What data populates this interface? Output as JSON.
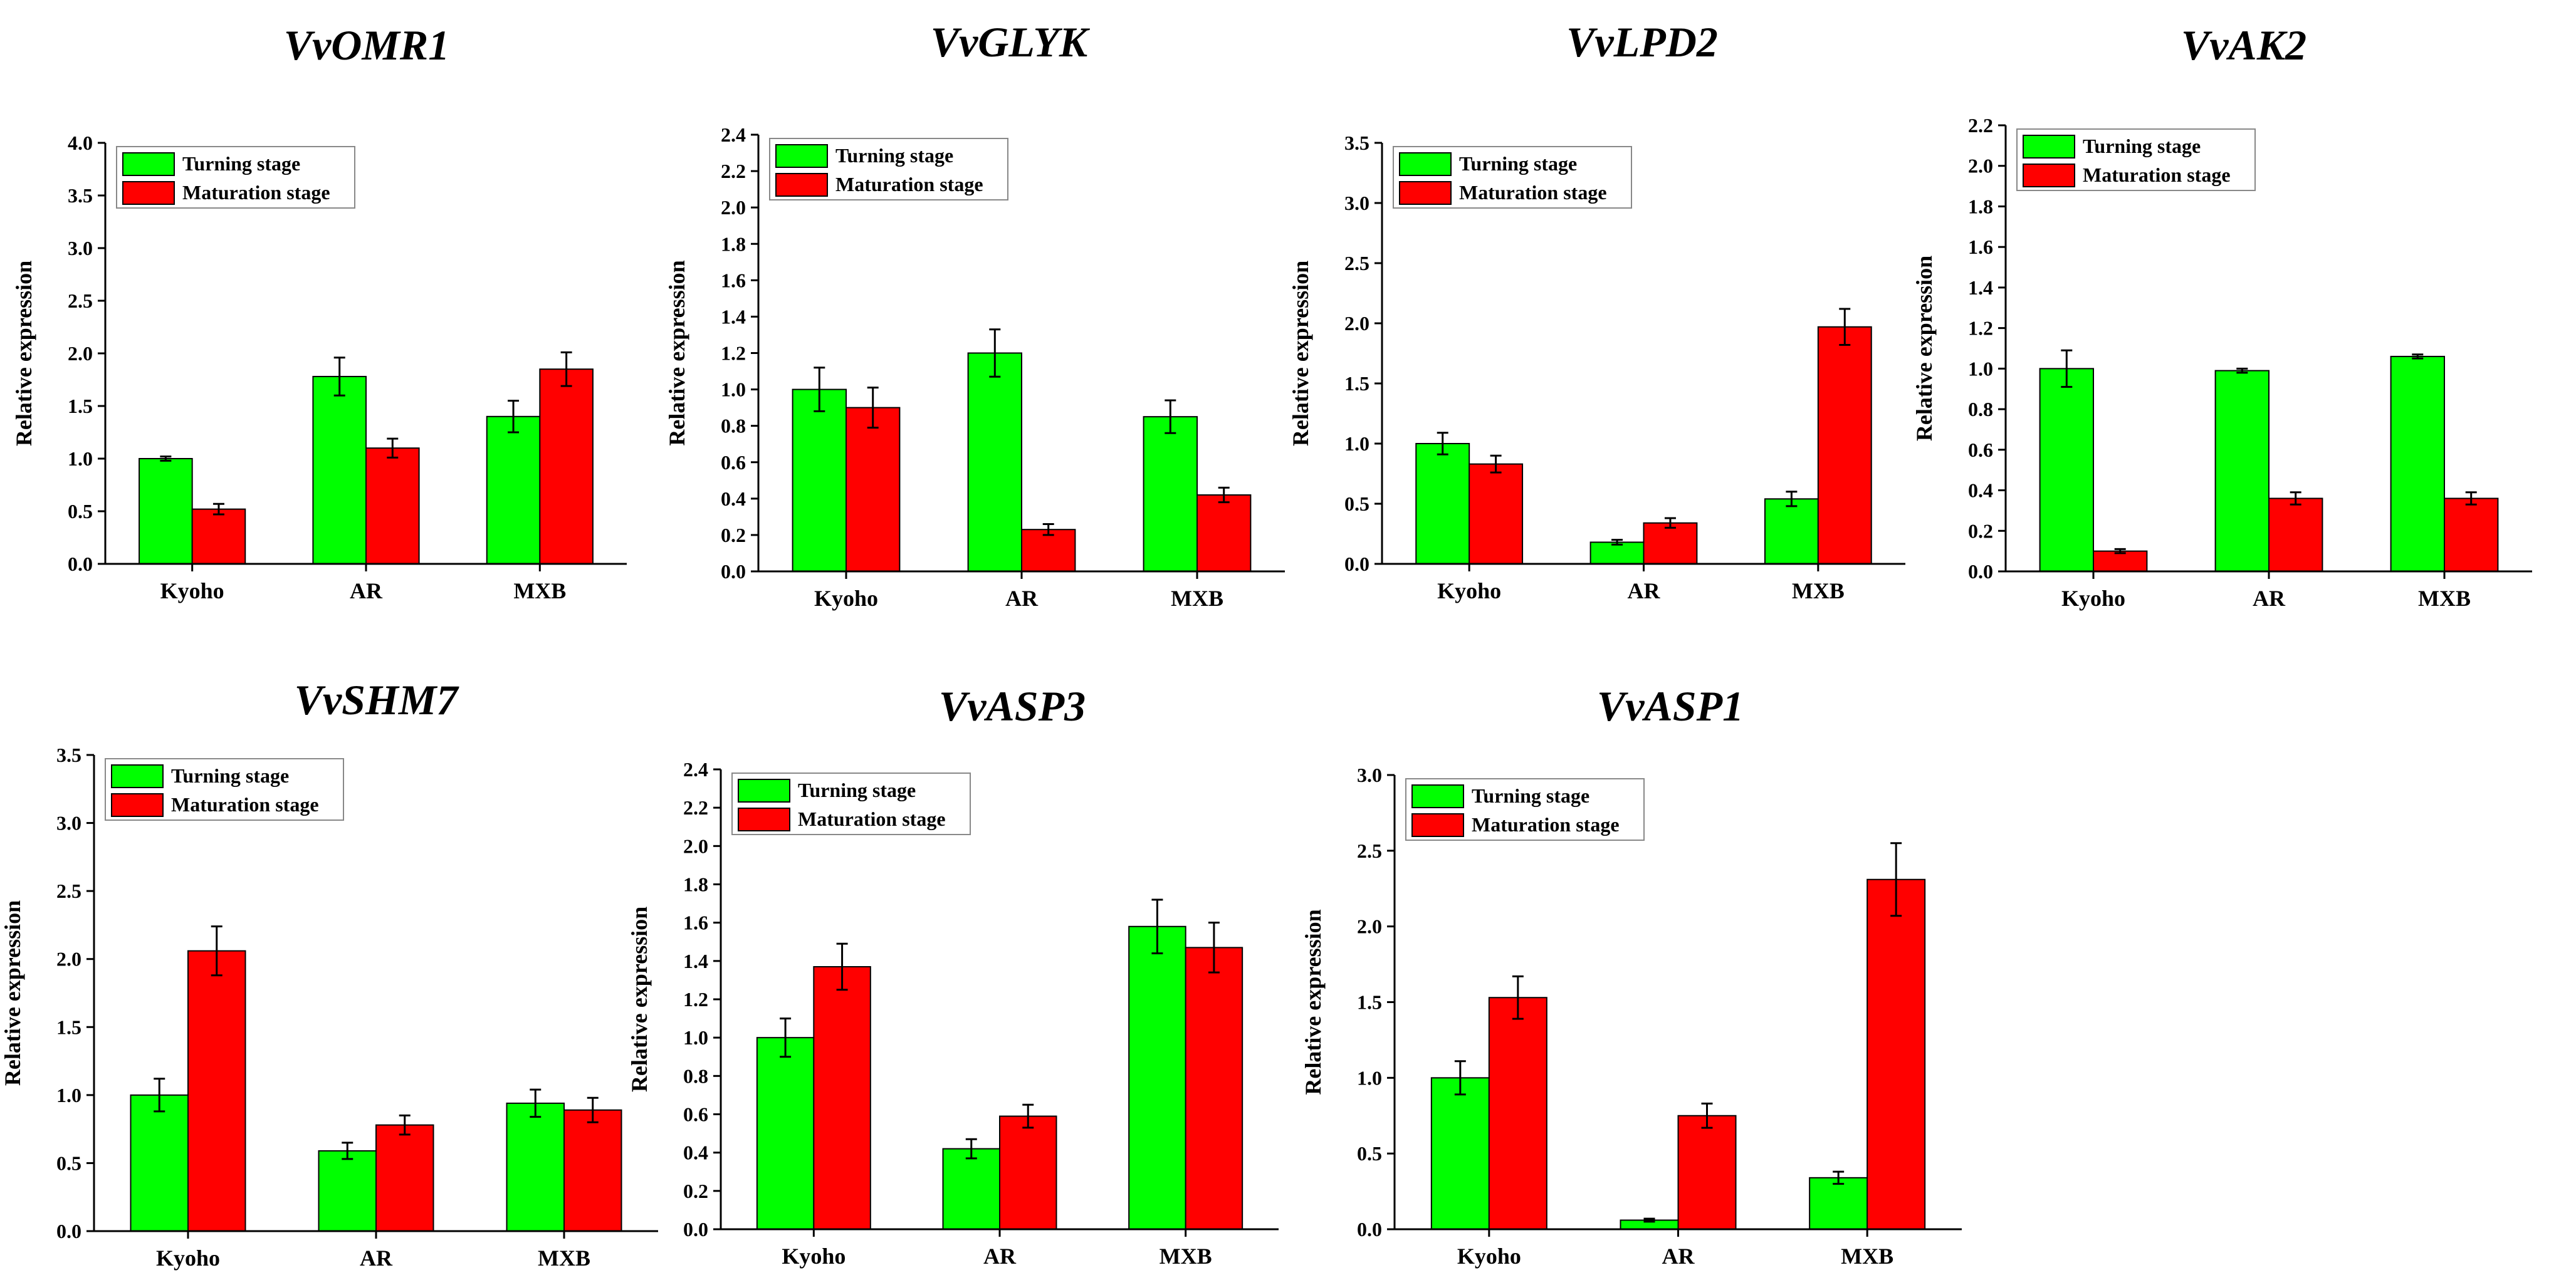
{
  "colors": {
    "turning": "#00ff00",
    "maturation": "#ff0000",
    "axis": "#000000"
  },
  "chart_data": [
    {
      "type": "bar",
      "title": "VvOMR1",
      "xlabel": "",
      "ylabel": "Relative expression",
      "categories": [
        "Kyoho",
        "AR",
        "MXB"
      ],
      "ylim": [
        0,
        4.0
      ],
      "yticks": [
        "0.0",
        "0.5",
        "1.0",
        "1.5",
        "2.0",
        "2.5",
        "3.0",
        "3.5",
        "4.0"
      ],
      "legend_position": "top-left",
      "grid": false,
      "series": [
        {
          "name": "Turning stage",
          "values": [
            1.0,
            1.78,
            1.4
          ],
          "errors": [
            0.02,
            0.18,
            0.15
          ]
        },
        {
          "name": "Maturation stage",
          "values": [
            0.52,
            1.1,
            1.85
          ],
          "errors": [
            0.05,
            0.09,
            0.16
          ]
        }
      ]
    },
    {
      "type": "bar",
      "title": "VvGLYK",
      "xlabel": "",
      "ylabel": "Relative expression",
      "categories": [
        "Kyoho",
        "AR",
        "MXB"
      ],
      "ylim": [
        0,
        2.4
      ],
      "yticks": [
        "0.0",
        "0.2",
        "0.4",
        "0.6",
        "0.8",
        "1.0",
        "1.2",
        "1.4",
        "1.6",
        "1.8",
        "2.0",
        "2.2",
        "2.4"
      ],
      "legend_position": "top-left",
      "grid": false,
      "series": [
        {
          "name": "Turning stage",
          "values": [
            1.0,
            1.2,
            0.85
          ],
          "errors": [
            0.12,
            0.13,
            0.09
          ]
        },
        {
          "name": "Maturation stage",
          "values": [
            0.9,
            0.23,
            0.42
          ],
          "errors": [
            0.11,
            0.03,
            0.04
          ]
        }
      ]
    },
    {
      "type": "bar",
      "title": "VvLPD2",
      "xlabel": "",
      "ylabel": "Relative expression",
      "categories": [
        "Kyoho",
        "AR",
        "MXB"
      ],
      "ylim": [
        0,
        3.5
      ],
      "yticks": [
        "0.0",
        "0.5",
        "1.0",
        "1.5",
        "2.0",
        "2.5",
        "3.0",
        "3.5"
      ],
      "legend_position": "top-left",
      "grid": false,
      "series": [
        {
          "name": "Turning stage",
          "values": [
            1.0,
            0.18,
            0.54
          ],
          "errors": [
            0.09,
            0.02,
            0.06
          ]
        },
        {
          "name": "Maturation stage",
          "values": [
            0.83,
            0.34,
            1.97
          ],
          "errors": [
            0.07,
            0.04,
            0.15
          ]
        }
      ]
    },
    {
      "type": "bar",
      "title": "VvAK2",
      "xlabel": "",
      "ylabel": "Relative expression",
      "categories": [
        "Kyoho",
        "AR",
        "MXB"
      ],
      "ylim": [
        0,
        2.2
      ],
      "yticks": [
        "0.0",
        "0.2",
        "0.4",
        "0.6",
        "0.8",
        "1.0",
        "1.2",
        "1.4",
        "1.6",
        "1.8",
        "2.0",
        "2.2"
      ],
      "legend_position": "top-left",
      "grid": false,
      "series": [
        {
          "name": "Turning stage",
          "values": [
            1.0,
            0.99,
            1.06
          ],
          "errors": [
            0.09,
            0.01,
            0.01
          ]
        },
        {
          "name": "Maturation stage",
          "values": [
            0.1,
            0.36,
            0.36
          ],
          "errors": [
            0.01,
            0.03,
            0.03
          ]
        }
      ]
    },
    {
      "type": "bar",
      "title": "VvSHM7",
      "xlabel": "",
      "ylabel": "Relative expression",
      "categories": [
        "Kyoho",
        "AR",
        "MXB"
      ],
      "ylim": [
        0,
        3.5
      ],
      "yticks": [
        "0.0",
        "0.5",
        "1.0",
        "1.5",
        "2.0",
        "2.5",
        "3.0",
        "3.5"
      ],
      "legend_position": "top-left",
      "grid": false,
      "series": [
        {
          "name": "Turning stage",
          "values": [
            1.0,
            0.59,
            0.94
          ],
          "errors": [
            0.12,
            0.06,
            0.1
          ]
        },
        {
          "name": "Maturation stage",
          "values": [
            2.06,
            0.78,
            0.89
          ],
          "errors": [
            0.18,
            0.07,
            0.09
          ]
        }
      ]
    },
    {
      "type": "bar",
      "title": "VvASP3",
      "xlabel": "",
      "ylabel": "Relative expression",
      "categories": [
        "Kyoho",
        "AR",
        "MXB"
      ],
      "ylim": [
        0,
        2.4
      ],
      "yticks": [
        "0.0",
        "0.2",
        "0.4",
        "0.6",
        "0.8",
        "1.0",
        "1.2",
        "1.4",
        "1.6",
        "1.8",
        "2.0",
        "2.2",
        "2.4"
      ],
      "legend_position": "top-left",
      "grid": false,
      "series": [
        {
          "name": "Turning stage",
          "values": [
            1.0,
            0.42,
            1.58
          ],
          "errors": [
            0.1,
            0.05,
            0.14
          ]
        },
        {
          "name": "Maturation stage",
          "values": [
            1.37,
            0.59,
            1.47
          ],
          "errors": [
            0.12,
            0.06,
            0.13
          ]
        }
      ]
    },
    {
      "type": "bar",
      "title": "VvASP1",
      "xlabel": "",
      "ylabel": "Relative expression",
      "categories": [
        "Kyoho",
        "AR",
        "MXB"
      ],
      "ylim": [
        0,
        3.0
      ],
      "yticks": [
        "0.0",
        "0.5",
        "1.0",
        "1.5",
        "2.0",
        "2.5",
        "3.0"
      ],
      "legend_position": "top-left",
      "grid": false,
      "series": [
        {
          "name": "Turning stage",
          "values": [
            1.0,
            0.06,
            0.34
          ],
          "errors": [
            0.11,
            0.01,
            0.04
          ]
        },
        {
          "name": "Maturation stage",
          "values": [
            1.53,
            0.75,
            2.31
          ],
          "errors": [
            0.14,
            0.08,
            0.24
          ]
        }
      ]
    }
  ]
}
